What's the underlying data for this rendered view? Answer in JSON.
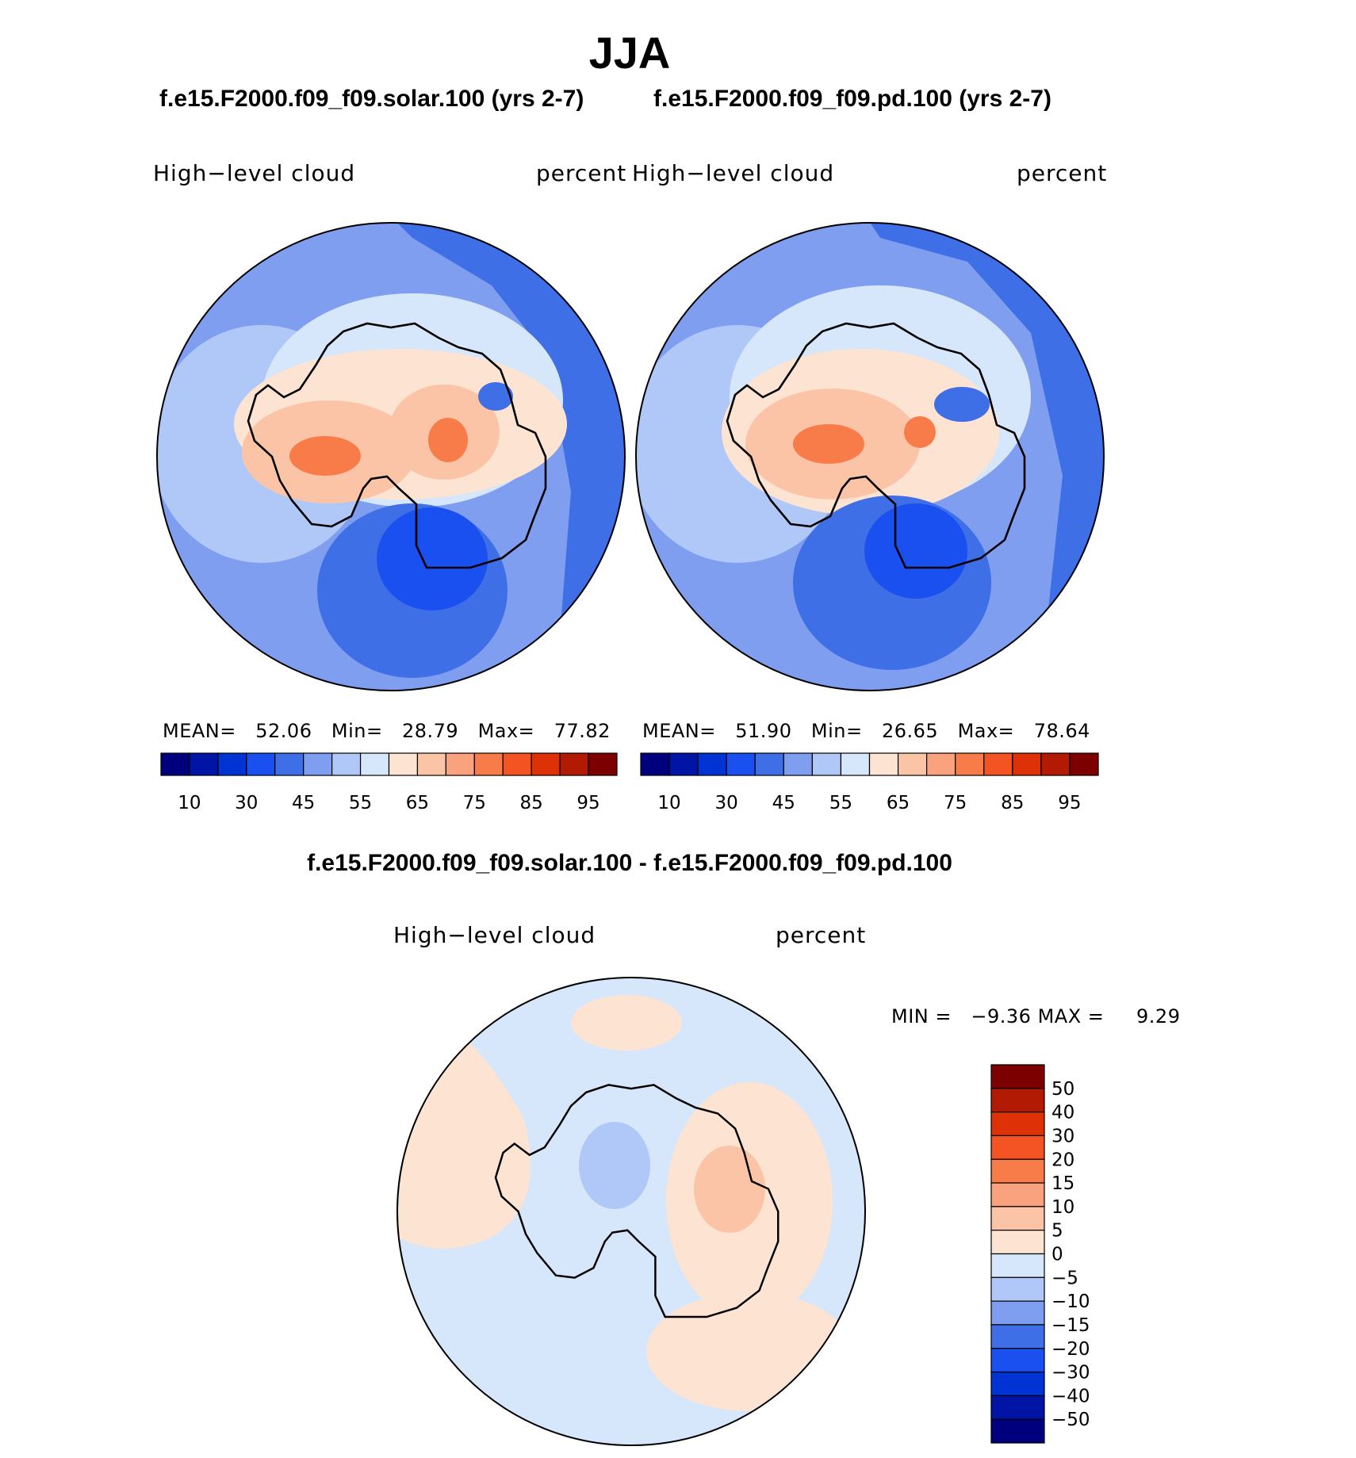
{
  "title": "JJA",
  "panels": [
    {
      "case": "f.e15.F2000.f09_f09.solar.100 (yrs 2-7)",
      "variable": "High−level cloud",
      "units": "percent",
      "stats": {
        "mean_label": "MEAN=",
        "mean": "52.06",
        "min_label": "Min=",
        "min": "28.79",
        "max_label": "Max=",
        "max": "77.82"
      }
    },
    {
      "case": "f.e15.F2000.f09_f09.pd.100 (yrs 2-7)",
      "variable": "High−level cloud",
      "units": "percent",
      "stats": {
        "mean_label": "MEAN=",
        "mean": "51.90",
        "min_label": "Min=",
        "min": "26.65",
        "max_label": "Max=",
        "max": "78.64"
      }
    }
  ],
  "abs_colorbar": {
    "colors": [
      "#00007f",
      "#0015a6",
      "#0033d3",
      "#1a4ff0",
      "#3f6fe6",
      "#7f9ef0",
      "#b0c8f8",
      "#d6e6fb",
      "#fde4d2",
      "#fcc4a6",
      "#f9a27d",
      "#f77c4a",
      "#f45323",
      "#df3108",
      "#b31a03",
      "#7c0000"
    ],
    "labels": [
      "10",
      "30",
      "45",
      "55",
      "65",
      "75",
      "85",
      "95"
    ]
  },
  "difference": {
    "title": "f.e15.F2000.f09_f09.solar.100 - f.e15.F2000.f09_f09.pd.100",
    "variable": "High−level cloud",
    "units": "percent",
    "min_label": "MIN =",
    "min": "−9.36",
    "max_label": "MAX =",
    "max": "9.29",
    "colorbar": {
      "colors_top_to_bottom": [
        "#7c0000",
        "#b31a03",
        "#df3108",
        "#f45323",
        "#f77c4a",
        "#f9a27d",
        "#fcc4a6",
        "#fde4d2",
        "#d6e6fb",
        "#b0c8f8",
        "#7f9ef0",
        "#3f6fe6",
        "#1a4ff0",
        "#0033d3",
        "#0015a6",
        "#00007f"
      ],
      "labels_top_to_bottom": [
        "50",
        "40",
        "30",
        "20",
        "15",
        "10",
        "5",
        "0",
        "−5",
        "−10",
        "−15",
        "−20",
        "−30",
        "−40",
        "−50"
      ]
    }
  },
  "colors": {
    "ocean_light": "#b0c8f8",
    "ocean_mid": "#7f9ef0",
    "ocean_dark": "#3f6fe6",
    "land_warm": "#fcc4a6",
    "land_hot": "#f77c4a",
    "deep_blue": "#1a4ff0",
    "diff_pos": "#fde4d2",
    "diff_neg": "#d6e6fb"
  }
}
